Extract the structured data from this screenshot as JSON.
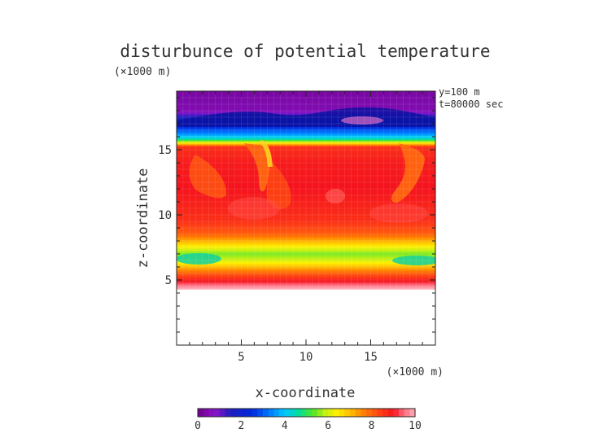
{
  "chart_data": {
    "type": "heatmap",
    "title": "disturbunce of potential temperature",
    "xlabel": "x-coordinate",
    "ylabel": "z-coordinate",
    "x_unit": "(×1000 m)",
    "y_unit": "(×1000 m)",
    "annotations": [
      "y=100 m",
      "t=80000 sec"
    ],
    "xlim": [
      0,
      20
    ],
    "ylim": [
      0,
      19.5
    ],
    "x_ticks": [
      5,
      10,
      15
    ],
    "y_ticks": [
      5,
      10,
      15
    ],
    "colorbar": {
      "range": [
        0,
        10
      ],
      "ticks": [
        0,
        2,
        4,
        6,
        8,
        10
      ],
      "levels": 40
    },
    "vertical_profile": [
      {
        "z": 4.3,
        "value": 10
      },
      {
        "z": 4.6,
        "value": 9.5
      },
      {
        "z": 5.0,
        "value": 8.8
      },
      {
        "z": 5.5,
        "value": 8.0
      },
      {
        "z": 6.0,
        "value": 7.0
      },
      {
        "z": 6.5,
        "value": 6.0
      },
      {
        "z": 7.0,
        "value": 5.5
      },
      {
        "z": 7.5,
        "value": 6.3
      },
      {
        "z": 8.0,
        "value": 7.2
      },
      {
        "z": 8.5,
        "value": 8.0
      },
      {
        "z": 9.5,
        "value": 8.6
      },
      {
        "z": 12.0,
        "value": 9.0
      },
      {
        "z": 14.0,
        "value": 8.9
      },
      {
        "z": 15.2,
        "value": 8.6
      },
      {
        "z": 15.5,
        "value": 6.5
      },
      {
        "z": 15.8,
        "value": 4.5
      },
      {
        "z": 16.2,
        "value": 3.5
      },
      {
        "z": 17.0,
        "value": 2.0
      },
      {
        "z": 17.5,
        "value": 1.5
      },
      {
        "z": 18.0,
        "value": 0.5
      },
      {
        "z": 19.5,
        "value": 0.3
      }
    ]
  }
}
